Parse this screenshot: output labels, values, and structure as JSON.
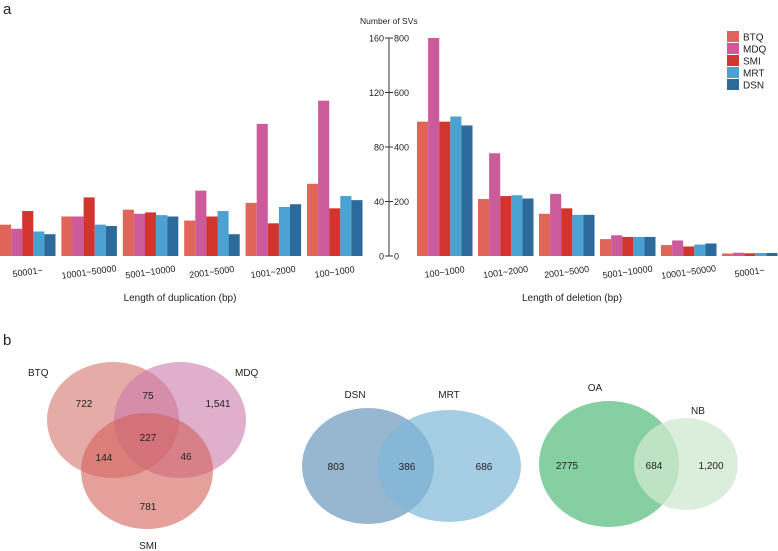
{
  "panel_labels": {
    "a": "a",
    "b": "b"
  },
  "chart_data": [
    {
      "type": "bar",
      "title": "",
      "xlabel": "Length of duplication (bp)",
      "ylabel": "Number of SVs",
      "ylim": [
        0,
        160
      ],
      "yticks": [
        "0",
        "40",
        "80",
        "120",
        "160"
      ],
      "categories": [
        "50001~",
        "10001~50000",
        "5001~10000",
        "2001~5000",
        "1001~2000",
        "100~1000"
      ],
      "series": [
        {
          "name": "BTQ",
          "color": "#e0645a",
          "values": [
            23,
            29,
            34,
            26,
            39,
            53
          ]
        },
        {
          "name": "MDQ",
          "color": "#cc5b9b",
          "values": [
            20,
            29,
            31,
            48,
            97,
            114
          ]
        },
        {
          "name": "SMI",
          "color": "#d2352e",
          "values": [
            33,
            43,
            32,
            29,
            24,
            35
          ]
        },
        {
          "name": "MRT",
          "color": "#4aa1d2",
          "values": [
            18,
            23,
            30,
            33,
            36,
            44
          ]
        },
        {
          "name": "DSN",
          "color": "#2c6a9b",
          "values": [
            16,
            22,
            29,
            16,
            38,
            41
          ]
        }
      ]
    },
    {
      "type": "bar",
      "title": "",
      "xlabel": "Length of deletion (bp)",
      "ylabel": "Number of SVs",
      "ylim": [
        0,
        800
      ],
      "yticks": [
        "0",
        "200",
        "400",
        "600",
        "800"
      ],
      "categories": [
        "100~1000",
        "1001~2000",
        "2001~5000",
        "5001~10000",
        "10001~50000",
        "50001~"
      ],
      "series": [
        {
          "name": "BTQ",
          "color": "#e0645a",
          "values": [
            493,
            209,
            155,
            62,
            40,
            9
          ]
        },
        {
          "name": "MDQ",
          "color": "#cc5b9b",
          "values": [
            800,
            377,
            228,
            76,
            57,
            12
          ]
        },
        {
          "name": "SMI",
          "color": "#d2352e",
          "values": [
            493,
            220,
            175,
            70,
            35,
            10
          ]
        },
        {
          "name": "MRT",
          "color": "#4aa1d2",
          "values": [
            512,
            223,
            151,
            70,
            42,
            11
          ]
        },
        {
          "name": "DSN",
          "color": "#2c6a9b",
          "values": [
            479,
            211,
            151,
            70,
            46,
            11
          ]
        }
      ],
      "legend": "top-right"
    }
  ],
  "axis_title": "Number of SVs",
  "venns": [
    {
      "sets": [
        "BTQ",
        "MDQ",
        "SMI"
      ],
      "regions": {
        "BTQ_only": "722",
        "MDQ_only": "1,541",
        "SMI_only": "781",
        "BTQ_MDQ": "75",
        "BTQ_SMI": "144",
        "MDQ_SMI": "46",
        "all": "227"
      }
    },
    {
      "sets": [
        "DSN",
        "MRT"
      ],
      "regions": {
        "DSN_only": "803",
        "both": "386",
        "MRT_only": "686"
      }
    },
    {
      "sets": [
        "OA",
        "NB"
      ],
      "regions": {
        "OA_only": "2775",
        "both": "684",
        "NB_only": "1,200"
      }
    }
  ]
}
